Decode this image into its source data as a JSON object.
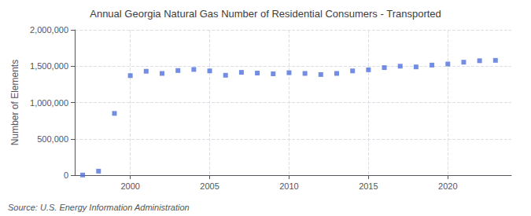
{
  "chart_data": {
    "type": "scatter",
    "title": "Annual Georgia Natural Gas Number of Residential Consumers - Transported",
    "ylabel": "Number of Elements",
    "annotations": [
      "Source: U.S. Energy Information Administration"
    ],
    "x": [
      1997,
      1998,
      1999,
      2000,
      2001,
      2002,
      2003,
      2004,
      2005,
      2006,
      2007,
      2008,
      2009,
      2010,
      2011,
      2012,
      2013,
      2014,
      2015,
      2016,
      2017,
      2018,
      2019,
      2020,
      2021,
      2022,
      2023
    ],
    "values": [
      2000,
      55000,
      850000,
      1370000,
      1430000,
      1400000,
      1440000,
      1455000,
      1435000,
      1375000,
      1415000,
      1405000,
      1395000,
      1410000,
      1400000,
      1385000,
      1400000,
      1435000,
      1450000,
      1480000,
      1500000,
      1490000,
      1515000,
      1530000,
      1555000,
      1575000,
      1580000
    ],
    "marker": "square",
    "xlim": [
      1996.5,
      2024
    ],
    "xticks": [
      2000,
      2005,
      2010,
      2015,
      2020
    ],
    "ylim": [
      0,
      2000000
    ],
    "yticks": [
      0,
      {
        "value": 500000,
        "label": "500,000"
      },
      {
        "value": 1000000,
        "label": "1,000,000"
      },
      {
        "value": 1500000,
        "label": "1,500,000"
      },
      {
        "value": 2000000,
        "label": "2,000,000"
      }
    ],
    "grid": true
  }
}
